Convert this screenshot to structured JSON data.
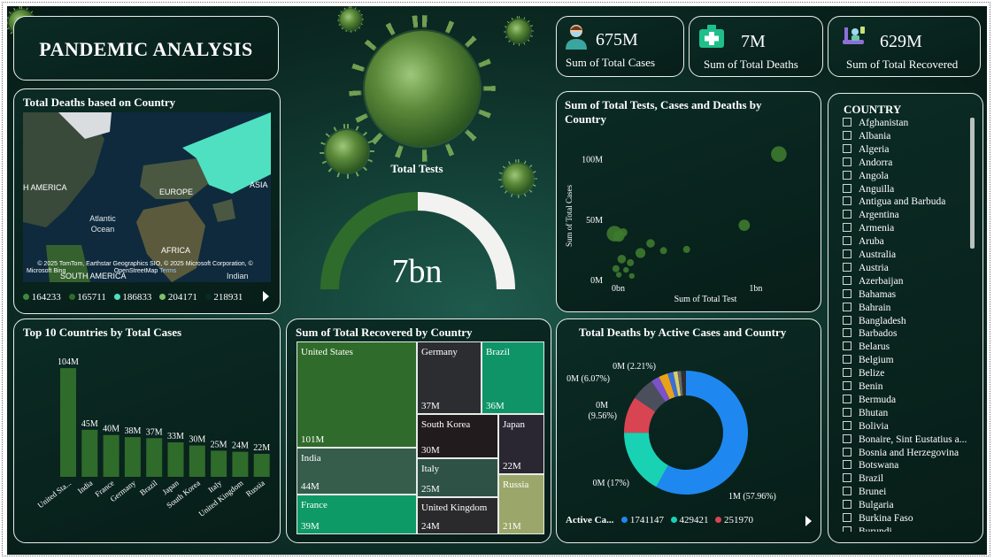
{
  "title": "PANDEMIC ANALYSIS",
  "kpis": [
    {
      "value": "675M",
      "label": "Sum of Total Cases",
      "icon": "doctor-icon"
    },
    {
      "value": "7M",
      "label": "Sum of Total Deaths",
      "icon": "medical-cross-icon"
    },
    {
      "value": "629M",
      "label": "Sum of Total Recovered",
      "icon": "recovery-icon"
    }
  ],
  "map": {
    "title": "Total Deaths based on Country",
    "labels": {
      "na": "H AMERICA",
      "europe": "EUROPE",
      "asia": "ASIA",
      "ocean": "Atlantic Ocean",
      "africa": "AFRICA",
      "sa": "SOUTH AMERICA",
      "indian": "Indian"
    },
    "attribution": "© 2025 TomTom, Earthstar Geographics SIO, © 2025 Microsoft Corporation, © OpenStreetMap",
    "terms": "Terms",
    "brand": "Microsoft Bing",
    "legend": [
      {
        "label": "164233",
        "color": "#3d8a3a"
      },
      {
        "label": "165711",
        "color": "#2f6b2a"
      },
      {
        "label": "186833",
        "color": "#4fe0c2"
      },
      {
        "label": "204171",
        "color": "#7fbf6a"
      },
      {
        "label": "218931",
        "color": "#0b2922"
      }
    ]
  },
  "gauge": {
    "title": "Total Tests",
    "value_label": "7bn",
    "fraction": 0.5
  },
  "scatter": {
    "title": "Sum of Total Tests, Cases and Deaths by Country",
    "xlabel": "Sum of Total Test",
    "ylabel": "Sum of Total Cases",
    "yticks": [
      "100M",
      "50M",
      "0M"
    ],
    "xticks": [
      "0bn",
      "1bn"
    ]
  },
  "chart_data": [
    {
      "type": "bar",
      "title": "Top 10 Countries by Total Cases",
      "categories": [
        "United States",
        "India",
        "France",
        "Germany",
        "Brazil",
        "Japan",
        "South Korea",
        "Italy",
        "United Kingdom",
        "Russia"
      ],
      "tick_labels": [
        "United Sta...",
        "India",
        "France",
        "Germany",
        "Brazil",
        "Japan",
        "South Korea",
        "Italy",
        "United Kingdom",
        "Russia"
      ],
      "values": [
        104,
        45,
        40,
        38,
        37,
        33,
        30,
        25,
        24,
        22
      ],
      "data_labels": [
        "104M",
        "45M",
        "40M",
        "38M",
        "37M",
        "33M",
        "30M",
        "25M",
        "24M",
        "22M"
      ],
      "ylim": [
        0,
        110
      ],
      "color": "#2f6b2a"
    },
    {
      "type": "scatter",
      "title": "Sum of Total Tests, Cases and Deaths by Country",
      "xlabel": "Sum of Total Test",
      "ylabel": "Sum of Total Cases",
      "xlim": [
        0,
        1.4
      ],
      "ylim": [
        0,
        110
      ],
      "points": [
        {
          "x": 1.16,
          "y": 104,
          "size": 11
        },
        {
          "x": 0.92,
          "y": 45,
          "size": 8
        },
        {
          "x": 0.02,
          "y": 38,
          "size": 11
        },
        {
          "x": 0.05,
          "y": 36,
          "size": 8
        },
        {
          "x": 0.08,
          "y": 39,
          "size": 6
        },
        {
          "x": 0.27,
          "y": 30,
          "size": 6
        },
        {
          "x": 0.52,
          "y": 25,
          "size": 5
        },
        {
          "x": 0.2,
          "y": 22,
          "size": 7
        },
        {
          "x": 0.07,
          "y": 17,
          "size": 6
        },
        {
          "x": 0.13,
          "y": 14,
          "size": 5
        },
        {
          "x": 0.03,
          "y": 9,
          "size": 5
        },
        {
          "x": 0.1,
          "y": 8,
          "size": 4
        },
        {
          "x": 0.05,
          "y": 4,
          "size": 4
        },
        {
          "x": 0.14,
          "y": 3,
          "size": 4
        },
        {
          "x": 0.36,
          "y": 24,
          "size": 5
        }
      ],
      "xticks": [
        "0bn",
        "1bn"
      ],
      "yticks": [
        "100M",
        "50M",
        "0M"
      ],
      "color": "#3d7a2e"
    },
    {
      "type": "treemap",
      "title": "Sum of Total Recovered by Country",
      "items": [
        {
          "name": "United States",
          "value": "101M",
          "color": "#2f6b2a"
        },
        {
          "name": "Germany",
          "value": "37M",
          "color": "#2b2d31"
        },
        {
          "name": "Brazil",
          "value": "36M",
          "color": "#0f9468"
        },
        {
          "name": "India",
          "value": "44M",
          "color": "#365c4c"
        },
        {
          "name": "South Korea",
          "value": "30M",
          "color": "#221b1e"
        },
        {
          "name": "Japan",
          "value": "22M",
          "color": "#2a2733"
        },
        {
          "name": "Italy",
          "value": "25M",
          "color": "#2f5246"
        },
        {
          "name": "France",
          "value": "39M",
          "color": "#0e9a66"
        },
        {
          "name": "United Kingdom",
          "value": "24M",
          "color": "#2a2a2c"
        },
        {
          "name": "Russia",
          "value": "21M",
          "color": "#9ba76a"
        }
      ]
    },
    {
      "type": "pie",
      "title": "Total Deaths by Active Cases and Country",
      "legend_title": "Active Ca...",
      "legend": [
        {
          "label": "1741147",
          "color": "#1e88f0"
        },
        {
          "label": "429421",
          "color": "#19d2b4"
        },
        {
          "label": "251970",
          "color": "#d94452"
        }
      ],
      "slices": [
        {
          "value": 57.96,
          "color": "#1e88f0",
          "label": "1M (57.96%)"
        },
        {
          "value": 17.0,
          "color": "#19d2b4",
          "label": "0M (17%)"
        },
        {
          "value": 9.56,
          "color": "#d94452",
          "label": "0M (9.56%)"
        },
        {
          "value": 6.07,
          "color": "#4b4f5c",
          "label": "0M (6.07%)"
        },
        {
          "value": 2.21,
          "color": "#7b52c9",
          "label": "0M (2.21%)"
        },
        {
          "value": 2.4,
          "color": "#e8a21a",
          "label": ""
        },
        {
          "value": 1.5,
          "color": "#3a6fd8",
          "label": ""
        },
        {
          "value": 1.1,
          "color": "#d9d06a",
          "label": ""
        },
        {
          "value": 0.9,
          "color": "#6a6a6a",
          "label": ""
        },
        {
          "value": 1.3,
          "color": "#2c2f36",
          "label": ""
        }
      ]
    }
  ],
  "slicer": {
    "title": "COUNTRY",
    "items": [
      "Afghanistan",
      "Albania",
      "Algeria",
      "Andorra",
      "Angola",
      "Anguilla",
      "Antigua and Barbuda",
      "Argentina",
      "Armenia",
      "Aruba",
      "Australia",
      "Austria",
      "Azerbaijan",
      "Bahamas",
      "Bahrain",
      "Bangladesh",
      "Barbados",
      "Belarus",
      "Belgium",
      "Belize",
      "Benin",
      "Bermuda",
      "Bhutan",
      "Bolivia",
      "Bonaire, Sint Eustatius a...",
      "Bosnia and Herzegovina",
      "Botswana",
      "Brazil",
      "Brunei",
      "Bulgaria",
      "Burkina Faso",
      "Burundi"
    ]
  }
}
